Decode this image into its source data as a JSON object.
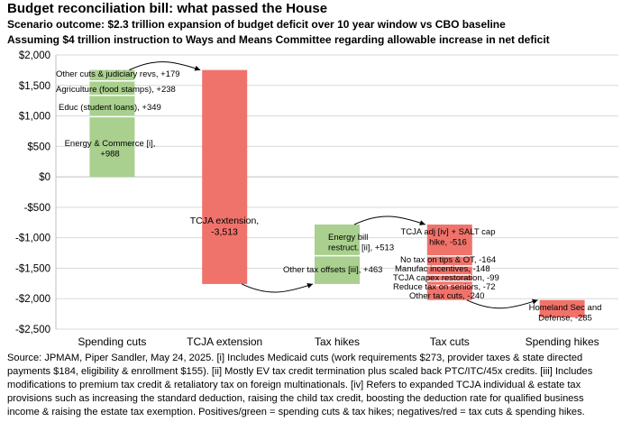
{
  "title": "Budget reconciliation bill: what passed the House",
  "subtitle1": "Scenario outcome: $2.3 trillion expansion of budget deficit over 10 year window vs CBO baseline",
  "subtitle2": "Assuming $4 trillion instruction to Ways and Means Committee regarding allowable increase in net deficit",
  "source": "Source: JPMAM, Piper Sandler, May 24, 2025.  [i] Includes Medicaid cuts (work requirements $273, provider taxes & state directed payments $184, eligibility & enrollment $155). [ii] Mostly EV tax credit termination plus scaled back PTC/ITC/45x credits. [iii] Includes modifications to premium tax credit & retaliatory tax on foreign multinationals.  [iv]  Refers to expanded TCJA individual & estate tax provisions such as increasing the standard deduction, raising the child tax credit, boosting the deduction rate for qualified business income & raising the estate tax exemption.  Positives/green = spending cuts & tax hikes; negatives/red = tax cuts & spending hikes.",
  "colors": {
    "positive": "#a9d08e",
    "negative": "#f0736b",
    "grid": "#d9d9d9"
  },
  "chart_data": {
    "type": "bar",
    "subtype": "waterfall",
    "ylim": [
      -2500,
      2000
    ],
    "yticks": [
      2000,
      1500,
      1000,
      500,
      0,
      -500,
      -1000,
      -1500,
      -2000,
      -2500
    ],
    "ytick_labels": [
      "$2,000",
      "$1,500",
      "$1,000",
      "$500",
      "$0",
      "-$500",
      "-$1,000",
      "-$1,500",
      "-$2,000",
      "-$2,500"
    ],
    "categories": [
      "Spending cuts",
      "TCJA extension",
      "Tax hikes",
      "Tax cuts",
      "Spending hikes"
    ],
    "groups": [
      {
        "category": "Spending cuts",
        "start": 0,
        "end": 1754,
        "color": "positive",
        "items": [
          {
            "label": "Energy & Commerce [i],\n+988",
            "value": 988
          },
          {
            "label": "Educ (student loans), +349",
            "value": 349
          },
          {
            "label": "Agriculture (food stamps), +238",
            "value": 238
          },
          {
            "label": "Other cuts & judiciary revs, +179",
            "value": 179
          }
        ]
      },
      {
        "category": "TCJA extension",
        "start": 1754,
        "end": -1759,
        "color": "negative",
        "items": [
          {
            "label": "TCJA extension,\n-3,513",
            "value": -3513
          }
        ]
      },
      {
        "category": "Tax hikes",
        "start": -1759,
        "end": -783,
        "color": "positive",
        "items": [
          {
            "label": "Other tax offsets [iii], +463",
            "value": 463
          },
          {
            "label": "Energy bill\nrestruct. [ii], +513",
            "value": 513
          }
        ]
      },
      {
        "category": "Tax cuts",
        "start": -783,
        "end": -2022,
        "color": "negative",
        "items": [
          {
            "label": "TCJA adj [iv] + SALT cap\nhike, -516",
            "value": -516
          },
          {
            "label": "No tax on tips & OT, -164",
            "value": -164
          },
          {
            "label": "Manufac incentives, -148",
            "value": -148
          },
          {
            "label": "TCJA capex restoration, -99",
            "value": -99
          },
          {
            "label": "Reduce tax on seniors, -72",
            "value": -72
          },
          {
            "label": "Other tax cuts, -240",
            "value": -240
          }
        ]
      },
      {
        "category": "Spending hikes",
        "start": -2022,
        "end": -2307,
        "color": "negative",
        "items": [
          {
            "label": "Homeland Sec and\nDefense, -285",
            "value": -285
          }
        ]
      }
    ]
  }
}
